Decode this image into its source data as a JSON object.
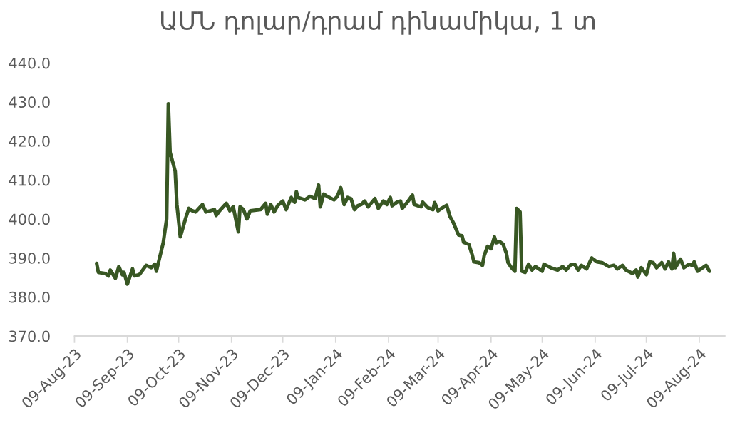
{
  "chart_data": {
    "type": "line",
    "title": "ԱՄՆ դոլար/դրամ դինամիկա, 1 տ",
    "x": [
      "2023-08-22",
      "2023-08-23",
      "2023-08-27",
      "2023-08-29",
      "2023-08-30",
      "2023-09-02",
      "2023-09-04",
      "2023-09-06",
      "2023-09-07",
      "2023-09-09",
      "2023-09-12",
      "2023-09-13",
      "2023-09-16",
      "2023-09-20",
      "2023-09-23",
      "2023-09-25",
      "2023-09-26",
      "2023-09-28",
      "2023-09-30",
      "2023-10-02",
      "2023-10-03",
      "2023-10-04",
      "2023-10-07",
      "2023-10-08",
      "2023-10-10",
      "2023-10-13",
      "2023-10-15",
      "2023-10-17",
      "2023-10-19",
      "2023-10-23",
      "2023-10-25",
      "2023-10-30",
      "2023-10-31",
      "2023-11-02",
      "2023-11-06",
      "2023-11-08",
      "2023-11-10",
      "2023-11-13",
      "2023-11-14",
      "2023-11-16",
      "2023-11-18",
      "2023-11-20",
      "2023-11-26",
      "2023-11-29",
      "2023-11-30",
      "2023-12-02",
      "2023-12-04",
      "2023-12-06",
      "2023-12-09",
      "2023-12-11",
      "2023-12-14",
      "2023-12-16",
      "2023-12-17",
      "2023-12-18",
      "2023-12-22",
      "2023-12-25",
      "2023-12-28",
      "2023-12-30",
      "2023-12-31",
      "2024-01-02",
      "2024-01-04",
      "2024-01-08",
      "2024-01-10",
      "2024-01-12",
      "2024-01-14",
      "2024-01-16",
      "2024-01-18",
      "2024-01-20",
      "2024-01-22",
      "2024-01-24",
      "2024-01-26",
      "2024-01-28",
      "2024-02-01",
      "2024-02-03",
      "2024-02-06",
      "2024-02-08",
      "2024-02-10",
      "2024-02-11",
      "2024-02-14",
      "2024-02-16",
      "2024-02-17",
      "2024-02-20",
      "2024-02-23",
      "2024-02-24",
      "2024-02-28",
      "2024-02-29",
      "2024-03-03",
      "2024-03-06",
      "2024-03-07",
      "2024-03-09",
      "2024-03-11",
      "2024-03-14",
      "2024-03-16",
      "2024-03-18",
      "2024-03-21",
      "2024-03-23",
      "2024-03-24",
      "2024-03-27",
      "2024-03-29",
      "2024-03-30",
      "2024-04-02",
      "2024-04-04",
      "2024-04-05",
      "2024-04-07",
      "2024-04-09",
      "2024-04-11",
      "2024-04-12",
      "2024-04-14",
      "2024-04-16",
      "2024-04-18",
      "2024-04-19",
      "2024-04-21",
      "2024-04-23",
      "2024-04-24",
      "2024-04-26",
      "2024-04-27",
      "2024-04-29",
      "2024-05-01",
      "2024-05-03",
      "2024-05-05",
      "2024-05-07",
      "2024-05-09",
      "2024-05-10",
      "2024-05-14",
      "2024-05-18",
      "2024-05-21",
      "2024-05-23",
      "2024-05-26",
      "2024-05-28",
      "2024-05-30",
      "2024-06-01",
      "2024-06-04",
      "2024-06-07",
      "2024-06-10",
      "2024-06-13",
      "2024-06-17",
      "2024-06-20",
      "2024-06-22",
      "2024-06-25",
      "2024-06-27",
      "2024-07-01",
      "2024-07-03",
      "2024-07-04",
      "2024-07-06",
      "2024-07-09",
      "2024-07-11",
      "2024-07-13",
      "2024-07-15",
      "2024-07-18",
      "2024-07-20",
      "2024-07-22",
      "2024-07-24",
      "2024-07-25",
      "2024-07-26",
      "2024-07-29",
      "2024-07-31",
      "2024-08-03",
      "2024-08-05",
      "2024-08-06",
      "2024-08-08",
      "2024-08-10",
      "2024-08-13",
      "2024-08-15"
    ],
    "series": [
      {
        "color": "#385723",
        "values": [
          388.6,
          386.3,
          386.0,
          385.4,
          386.9,
          384.8,
          387.8,
          385.7,
          386.3,
          383.3,
          387.2,
          385.4,
          385.7,
          388.1,
          387.5,
          388.4,
          386.6,
          390.3,
          393.9,
          400.0,
          429.5,
          417.1,
          412.2,
          403.7,
          395.4,
          400.0,
          402.7,
          402.1,
          401.8,
          403.7,
          401.8,
          402.4,
          400.9,
          402.1,
          404.0,
          402.1,
          403.1,
          396.7,
          403.1,
          402.4,
          400.0,
          402.1,
          402.4,
          404.0,
          401.2,
          403.7,
          401.8,
          403.4,
          404.6,
          402.4,
          405.5,
          404.3,
          407.0,
          405.5,
          404.9,
          405.8,
          405.2,
          408.7,
          403.1,
          406.4,
          405.8,
          404.9,
          405.8,
          408.0,
          403.7,
          405.5,
          405.2,
          402.4,
          403.4,
          403.7,
          404.6,
          403.1,
          405.2,
          402.7,
          404.6,
          403.7,
          405.5,
          403.4,
          404.3,
          404.6,
          402.7,
          404.3,
          406.1,
          403.7,
          403.1,
          404.3,
          402.9,
          402.4,
          404.2,
          402.1,
          402.7,
          403.5,
          400.6,
          399.0,
          395.9,
          395.7,
          394.0,
          393.5,
          390.8,
          389.0,
          388.8,
          388.1,
          390.6,
          393.0,
          392.4,
          395.4,
          393.9,
          394.2,
          393.6,
          391.2,
          388.8,
          387.5,
          386.6,
          402.7,
          401.8,
          386.6,
          386.3,
          388.4,
          386.9,
          387.8,
          387.2,
          386.6,
          388.4,
          387.5,
          386.9,
          387.8,
          386.9,
          388.4,
          388.4,
          386.9,
          388.1,
          387.2,
          390.0,
          389.0,
          388.8,
          387.8,
          388.1,
          387.2,
          388.1,
          386.9,
          386.0,
          386.9,
          385.1,
          387.5,
          385.7,
          389.0,
          388.8,
          387.5,
          388.8,
          387.2,
          389.0,
          387.2,
          391.2,
          387.5,
          389.7,
          387.5,
          388.4,
          388.1,
          389.0,
          386.6,
          387.2,
          388.1,
          386.6
        ]
      }
    ],
    "line_style": "solid",
    "xlim": [
      "2023-08-09",
      "2024-08-24"
    ],
    "xticks": [
      {
        "value": "2023-08-09",
        "label": "09-Aug-23"
      },
      {
        "value": "2023-09-09",
        "label": "09-Sep-23"
      },
      {
        "value": "2023-10-09",
        "label": "09-Oct-23"
      },
      {
        "value": "2023-11-09",
        "label": "09-Nov-23"
      },
      {
        "value": "2023-12-09",
        "label": "09-Dec-23"
      },
      {
        "value": "2024-01-09",
        "label": "09-Jan-24"
      },
      {
        "value": "2024-02-09",
        "label": "09-Feb-24"
      },
      {
        "value": "2024-03-09",
        "label": "09-Mar-24"
      },
      {
        "value": "2024-04-09",
        "label": "09-Apr-24"
      },
      {
        "value": "2024-05-09",
        "label": "09-May-24"
      },
      {
        "value": "2024-06-09",
        "label": "09-Jun-24"
      },
      {
        "value": "2024-07-09",
        "label": "09-Jul-24"
      },
      {
        "value": "2024-08-09",
        "label": "09-Aug-24"
      }
    ],
    "ylim": [
      370,
      440
    ],
    "yticks": [
      {
        "value": 370,
        "label": "370.0"
      },
      {
        "value": 380,
        "label": "380.0"
      },
      {
        "value": 390,
        "label": "390.0"
      },
      {
        "value": 400,
        "label": "400.0"
      },
      {
        "value": 410,
        "label": "410.0"
      },
      {
        "value": 420,
        "label": "420.0"
      },
      {
        "value": 430,
        "label": "430.0"
      },
      {
        "value": 440,
        "label": "440.0"
      }
    ]
  }
}
